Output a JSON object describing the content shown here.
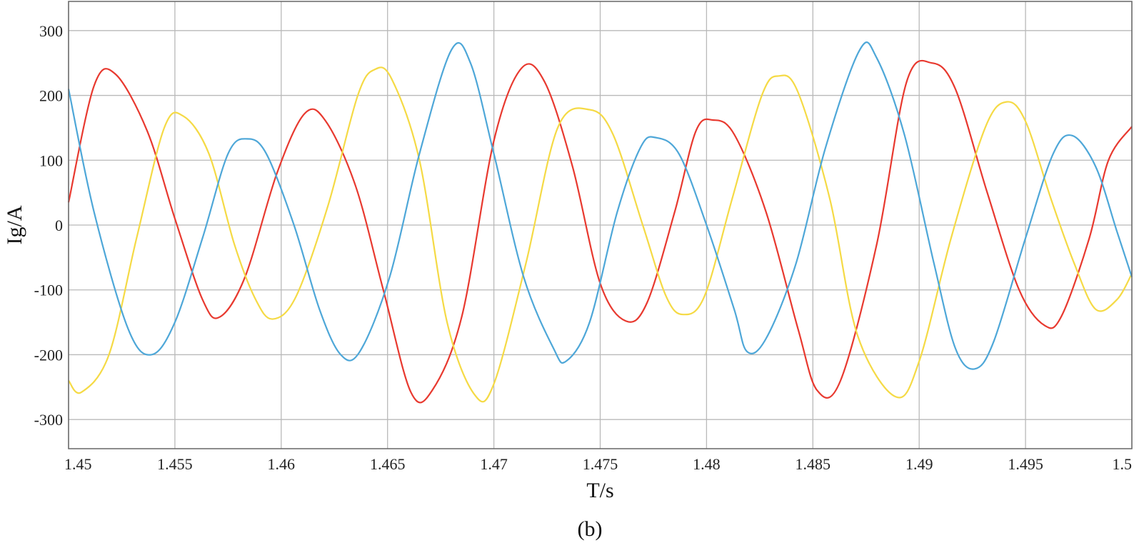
{
  "caption": "(b)",
  "chart_data": {
    "type": "line",
    "xlabel": "T/s",
    "ylabel": "Ig/A",
    "xlim": [
      1.45,
      1.5
    ],
    "ylim": [
      -345,
      345
    ],
    "grid": true,
    "x_ticks": [
      1.45,
      1.455,
      1.46,
      1.465,
      1.47,
      1.475,
      1.48,
      1.485,
      1.49,
      1.495,
      1.5
    ],
    "x_tick_labels": [
      "1.45",
      "1.455",
      "1.46",
      "1.465",
      "1.47",
      "1.475",
      "1.48",
      "1.485",
      "1.49",
      "1.495",
      "1.5"
    ],
    "y_ticks": [
      300,
      200,
      100,
      0,
      -100,
      -200,
      -300
    ],
    "y_tick_labels": [
      "300",
      "200",
      "100",
      "0",
      "-100",
      "-200",
      "-300"
    ],
    "series": [
      {
        "color": "#e8392f",
        "points": [
          [
            1.45,
            35
          ],
          [
            1.4512,
            215
          ],
          [
            1.4522,
            233
          ],
          [
            1.4537,
            145
          ],
          [
            1.455,
            10
          ],
          [
            1.4563,
            -115
          ],
          [
            1.4571,
            -142
          ],
          [
            1.4583,
            -80
          ],
          [
            1.4598,
            80
          ],
          [
            1.4611,
            172
          ],
          [
            1.4621,
            160
          ],
          [
            1.4635,
            60
          ],
          [
            1.4648,
            -100
          ],
          [
            1.4661,
            -258
          ],
          [
            1.4671,
            -255
          ],
          [
            1.4685,
            -140
          ],
          [
            1.47,
            130
          ],
          [
            1.4713,
            242
          ],
          [
            1.4724,
            220
          ],
          [
            1.4737,
            90
          ],
          [
            1.475,
            -90
          ],
          [
            1.4762,
            -148
          ],
          [
            1.4772,
            -120
          ],
          [
            1.4785,
            20
          ],
          [
            1.4795,
            145
          ],
          [
            1.4803,
            162
          ],
          [
            1.4813,
            140
          ],
          [
            1.4828,
            20
          ],
          [
            1.4843,
            -160
          ],
          [
            1.4852,
            -255
          ],
          [
            1.4863,
            -240
          ],
          [
            1.488,
            -30
          ],
          [
            1.4894,
            220
          ],
          [
            1.4906,
            250
          ],
          [
            1.4917,
            210
          ],
          [
            1.4932,
            50
          ],
          [
            1.4947,
            -100
          ],
          [
            1.4959,
            -155
          ],
          [
            1.4967,
            -140
          ],
          [
            1.498,
            -20
          ],
          [
            1.4989,
            100
          ],
          [
            1.5,
            152
          ]
        ]
      },
      {
        "color": "#f5da45",
        "points": [
          [
            1.45,
            -240
          ],
          [
            1.4506,
            -258
          ],
          [
            1.4519,
            -200
          ],
          [
            1.4532,
            -20
          ],
          [
            1.4545,
            150
          ],
          [
            1.4554,
            168
          ],
          [
            1.4566,
            110
          ],
          [
            1.4578,
            -30
          ],
          [
            1.4588,
            -115
          ],
          [
            1.4596,
            -145
          ],
          [
            1.4607,
            -110
          ],
          [
            1.4622,
            30
          ],
          [
            1.4636,
            200
          ],
          [
            1.4644,
            240
          ],
          [
            1.4652,
            225
          ],
          [
            1.4665,
            100
          ],
          [
            1.4678,
            -150
          ],
          [
            1.4691,
            -262
          ],
          [
            1.47,
            -245
          ],
          [
            1.4715,
            -60
          ],
          [
            1.473,
            150
          ],
          [
            1.4745,
            178
          ],
          [
            1.4756,
            140
          ],
          [
            1.477,
            0
          ],
          [
            1.4781,
            -110
          ],
          [
            1.4789,
            -138
          ],
          [
            1.4799,
            -110
          ],
          [
            1.4812,
            40
          ],
          [
            1.4826,
            200
          ],
          [
            1.4834,
            230
          ],
          [
            1.4843,
            205
          ],
          [
            1.4858,
            40
          ],
          [
            1.4871,
            -170
          ],
          [
            1.4889,
            -265
          ],
          [
            1.49,
            -210
          ],
          [
            1.4915,
            -20
          ],
          [
            1.4931,
            150
          ],
          [
            1.4941,
            190
          ],
          [
            1.495,
            160
          ],
          [
            1.4962,
            40
          ],
          [
            1.4973,
            -60
          ],
          [
            1.4983,
            -130
          ],
          [
            1.4993,
            -115
          ],
          [
            1.5,
            -75
          ]
        ]
      },
      {
        "color": "#4ea7d8",
        "points": [
          [
            1.45,
            210
          ],
          [
            1.4512,
            20
          ],
          [
            1.4528,
            -160
          ],
          [
            1.4539,
            -200
          ],
          [
            1.455,
            -150
          ],
          [
            1.4563,
            -20
          ],
          [
            1.4575,
            110
          ],
          [
            1.4584,
            133
          ],
          [
            1.4593,
            110
          ],
          [
            1.4606,
            0
          ],
          [
            1.4618,
            -130
          ],
          [
            1.4628,
            -200
          ],
          [
            1.4637,
            -195
          ],
          [
            1.4651,
            -80
          ],
          [
            1.4665,
            110
          ],
          [
            1.468,
            270
          ],
          [
            1.4689,
            250
          ],
          [
            1.47,
            110
          ],
          [
            1.4714,
            -80
          ],
          [
            1.4728,
            -190
          ],
          [
            1.4734,
            -210
          ],
          [
            1.4745,
            -150
          ],
          [
            1.4758,
            20
          ],
          [
            1.4769,
            120
          ],
          [
            1.4776,
            135
          ],
          [
            1.4787,
            110
          ],
          [
            1.48,
            0
          ],
          [
            1.4813,
            -130
          ],
          [
            1.4819,
            -195
          ],
          [
            1.4828,
            -175
          ],
          [
            1.4842,
            -60
          ],
          [
            1.4856,
            120
          ],
          [
            1.4872,
            270
          ],
          [
            1.488,
            258
          ],
          [
            1.4893,
            140
          ],
          [
            1.4907,
            -60
          ],
          [
            1.4917,
            -190
          ],
          [
            1.4926,
            -222
          ],
          [
            1.4935,
            -180
          ],
          [
            1.495,
            -20
          ],
          [
            1.4963,
            110
          ],
          [
            1.4972,
            138
          ],
          [
            1.4983,
            90
          ],
          [
            1.4993,
            -10
          ],
          [
            1.5,
            -80
          ]
        ]
      }
    ]
  }
}
